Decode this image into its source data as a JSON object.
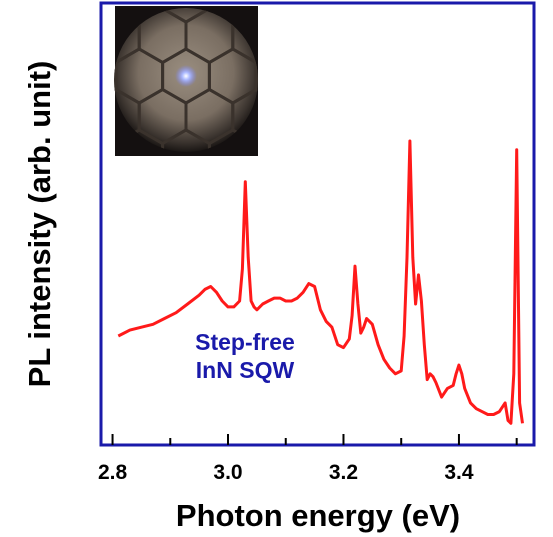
{
  "chart_data": {
    "type": "line",
    "title": "",
    "xlabel": "Photon energy (eV)",
    "ylabel": "PL intensity (arb. unit)",
    "xlim": [
      2.78,
      3.53
    ],
    "ylim": [
      0,
      1
    ],
    "x_ticks": [
      "2.8",
      "3.0",
      "3.2",
      "3.4"
    ],
    "x_tick_values": [
      2.8,
      3.0,
      3.2,
      3.4
    ],
    "y_ticks_shown": false,
    "grid": false,
    "legend": "none",
    "annotation": {
      "lines": [
        "Step-free",
        "InN SQW"
      ],
      "color": "#1a1aaa"
    },
    "inset": {
      "description_icon": "micrograph-hexagonal-mesa-icon"
    },
    "colors": {
      "frame": "#1a1aaa",
      "line": "#ff1a1a"
    },
    "series": [
      {
        "color": "#ff1a1a",
        "x": [
          2.81,
          2.83,
          2.85,
          2.87,
          2.89,
          2.91,
          2.93,
          2.95,
          2.96,
          2.97,
          2.98,
          2.99,
          3.0,
          3.01,
          3.02,
          3.025,
          3.03,
          3.035,
          3.04,
          3.045,
          3.05,
          3.06,
          3.07,
          3.08,
          3.09,
          3.1,
          3.11,
          3.12,
          3.13,
          3.14,
          3.15,
          3.16,
          3.17,
          3.18,
          3.19,
          3.2,
          3.21,
          3.215,
          3.22,
          3.225,
          3.23,
          3.235,
          3.24,
          3.245,
          3.25,
          3.26,
          3.27,
          3.28,
          3.29,
          3.3,
          3.305,
          3.31,
          3.315,
          3.32,
          3.325,
          3.33,
          3.335,
          3.34,
          3.345,
          3.35,
          3.355,
          3.36,
          3.37,
          3.38,
          3.39,
          3.395,
          3.4,
          3.405,
          3.41,
          3.42,
          3.43,
          3.44,
          3.45,
          3.46,
          3.47,
          3.48,
          3.485,
          3.49,
          3.495,
          3.5,
          3.505,
          3.51
        ],
        "y": [
          0.33,
          0.35,
          0.36,
          0.37,
          0.39,
          0.41,
          0.44,
          0.47,
          0.49,
          0.5,
          0.48,
          0.45,
          0.43,
          0.43,
          0.45,
          0.56,
          0.86,
          0.6,
          0.45,
          0.43,
          0.42,
          0.44,
          0.45,
          0.46,
          0.46,
          0.45,
          0.45,
          0.46,
          0.48,
          0.51,
          0.5,
          0.42,
          0.38,
          0.36,
          0.3,
          0.29,
          0.32,
          0.4,
          0.57,
          0.44,
          0.34,
          0.36,
          0.39,
          0.38,
          0.37,
          0.3,
          0.25,
          0.22,
          0.2,
          0.21,
          0.33,
          0.6,
          1.0,
          0.6,
          0.44,
          0.54,
          0.45,
          0.3,
          0.18,
          0.2,
          0.19,
          0.17,
          0.12,
          0.15,
          0.16,
          0.2,
          0.23,
          0.2,
          0.15,
          0.1,
          0.08,
          0.07,
          0.06,
          0.06,
          0.07,
          0.1,
          0.04,
          0.03,
          0.2,
          0.97,
          0.1,
          0.03
        ]
      }
    ]
  }
}
